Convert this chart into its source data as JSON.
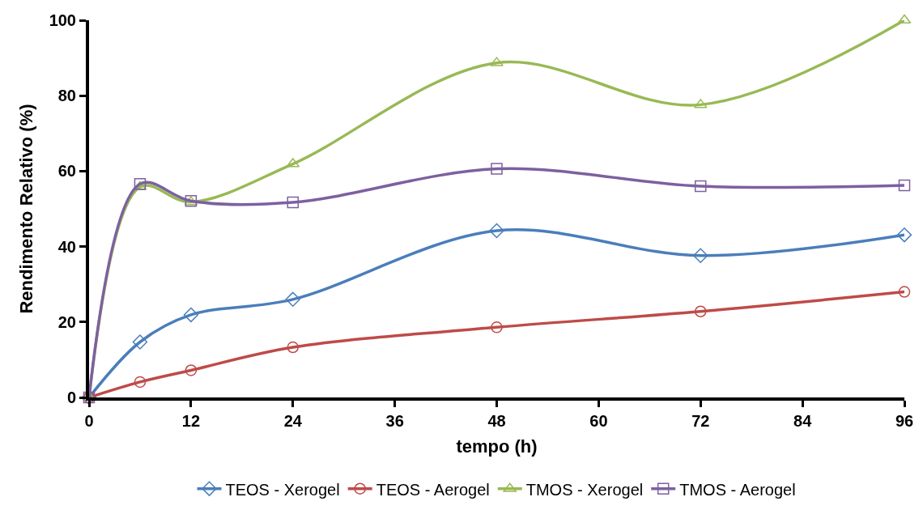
{
  "chart_data": {
    "type": "line",
    "xlabel": "tempo (h)",
    "ylabel": "Rendimento Relativo (%)",
    "x": [
      0,
      6,
      12,
      24,
      48,
      72,
      96
    ],
    "xlim": [
      0,
      96
    ],
    "xticks": [
      0,
      12,
      24,
      36,
      48,
      60,
      72,
      84,
      96
    ],
    "ylim": [
      0,
      100
    ],
    "yticks": [
      0,
      20,
      40,
      60,
      80,
      100
    ],
    "legend": "bottom",
    "line_style": "solid",
    "series": [
      {
        "name": "TEOS - Xerogel",
        "color": "#4a7ebb",
        "marker": "diamond",
        "values": [
          0,
          14.7,
          21.9,
          26.0,
          44.2,
          37.6,
          43.1
        ]
      },
      {
        "name": "TEOS - Aerogel",
        "color": "#be4b48",
        "marker": "circle",
        "values": [
          0,
          4.1,
          7.2,
          13.3,
          18.6,
          22.8,
          28.0
        ]
      },
      {
        "name": "TMOS - Xerogel",
        "color": "#98b954",
        "marker": "triangle",
        "values": [
          0,
          55.8,
          51.8,
          61.9,
          88.7,
          77.6,
          100
        ]
      },
      {
        "name": "TMOS - Aerogel",
        "color": "#7d60a0",
        "marker": "square",
        "values": [
          0,
          56.6,
          52.1,
          51.7,
          60.6,
          56.0,
          56.2
        ]
      }
    ]
  }
}
